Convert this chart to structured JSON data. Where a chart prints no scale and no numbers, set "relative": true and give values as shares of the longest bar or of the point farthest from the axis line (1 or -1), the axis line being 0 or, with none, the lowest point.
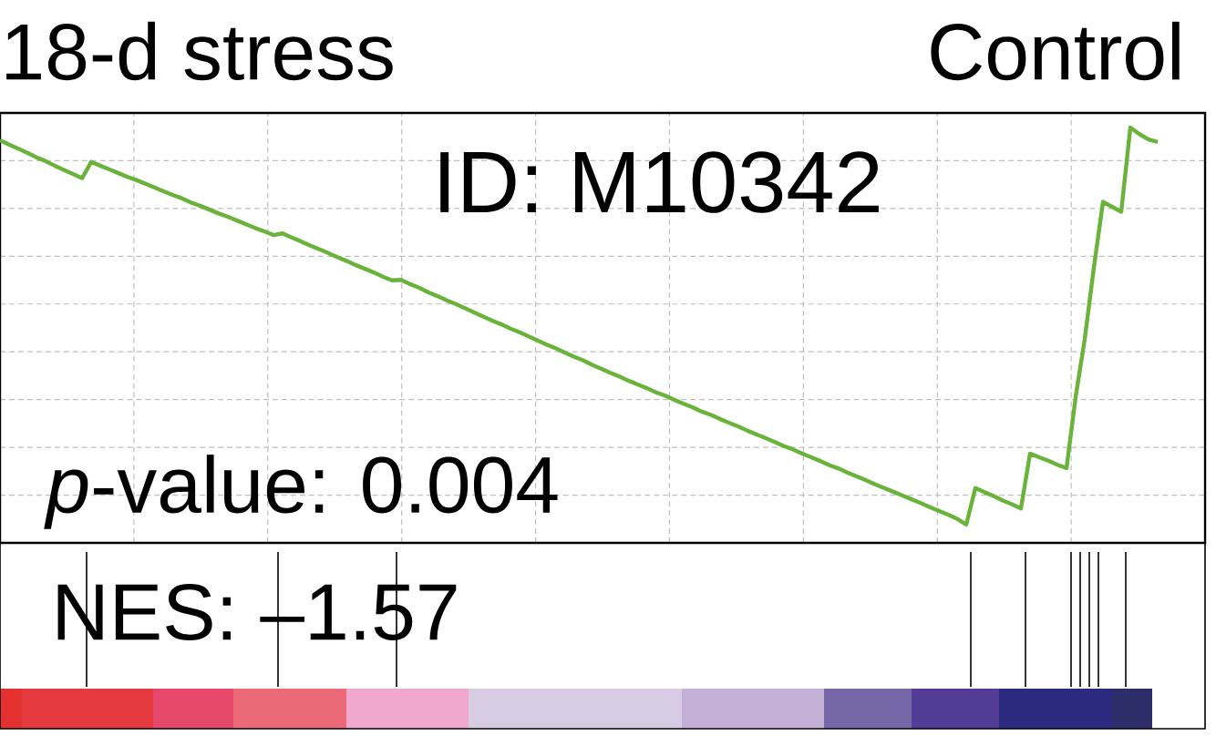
{
  "chart_data": {
    "type": "line",
    "relative": true,
    "grid": true,
    "tick_labels": false,
    "annotations": [
      "18-d stress",
      "Control",
      "ID: M10342",
      "*p*-value: 0.004",
      "NES: –1.57"
    ],
    "categories": [
      null,
      null,
      null,
      null,
      null,
      null,
      null,
      null,
      null,
      null,
      null,
      null,
      null,
      null,
      null,
      null,
      null,
      null,
      null,
      null,
      null,
      null,
      null,
      null,
      null,
      null,
      null,
      null,
      null,
      null,
      null,
      null,
      null,
      null,
      null,
      null,
      null,
      null,
      null,
      null,
      null,
      null,
      null,
      null,
      null,
      null,
      null,
      null,
      null,
      null,
      null,
      null,
      null,
      null,
      null,
      null,
      null,
      null,
      null,
      null,
      null,
      null,
      null,
      null,
      null,
      null,
      null,
      null,
      null,
      null,
      null,
      null,
      null,
      null,
      null,
      null,
      null,
      null,
      null,
      null,
      null,
      null,
      null,
      null,
      null,
      null,
      null,
      null,
      null,
      null,
      null,
      null,
      null,
      null,
      null,
      null,
      null,
      null,
      null,
      null,
      null,
      null,
      null,
      null,
      null,
      null,
      null,
      null,
      null,
      null,
      null,
      null,
      null,
      null,
      null,
      null,
      null,
      null,
      null,
      null,
      null,
      null,
      null,
      null,
      null,
      null,
      null,
      null
    ],
    "series": [
      {
        "color": "#6ab33a",
        "values": [
          0.969,
          0.959,
          0.949,
          0.939,
          0.928,
          0.919,
          0.908,
          0.898,
          0.888,
          0.878,
          0.917,
          0.908,
          0.899,
          0.89,
          0.881,
          0.873,
          0.864,
          0.855,
          0.846,
          0.837,
          0.829,
          0.819,
          0.811,
          0.802,
          0.793,
          0.785,
          0.776,
          0.767,
          0.758,
          0.75,
          0.741,
          0.745,
          0.735,
          0.726,
          0.716,
          0.707,
          0.698,
          0.688,
          0.679,
          0.669,
          0.66,
          0.651,
          0.641,
          0.632,
          0.633,
          0.623,
          0.614,
          0.603,
          0.594,
          0.584,
          0.575,
          0.565,
          0.555,
          0.545,
          0.535,
          0.526,
          0.516,
          0.507,
          0.497,
          0.487,
          0.477,
          0.468,
          0.458,
          0.448,
          0.439,
          0.428,
          0.419,
          0.409,
          0.4,
          0.39,
          0.381,
          0.372,
          0.362,
          0.354,
          0.344,
          0.335,
          0.326,
          0.316,
          0.308,
          0.298,
          0.289,
          0.28,
          0.27,
          0.261,
          0.252,
          0.243,
          0.233,
          0.225,
          0.215,
          0.206,
          0.197,
          0.187,
          0.179,
          0.169,
          0.16,
          0.151,
          0.141,
          0.132,
          0.123,
          0.114,
          0.105,
          0.096,
          0.086,
          0.077,
          0.068,
          0.058,
          0.044,
          0.132,
          0.122,
          0.113,
          0.102,
          0.093,
          0.083,
          0.215,
          0.206,
          0.198,
          0.188,
          0.18,
          0.351,
          0.491,
          0.663,
          0.821,
          0.809,
          0.797,
          1,
          0.984,
          0.971,
          0.965
        ]
      }
    ]
  }
}
